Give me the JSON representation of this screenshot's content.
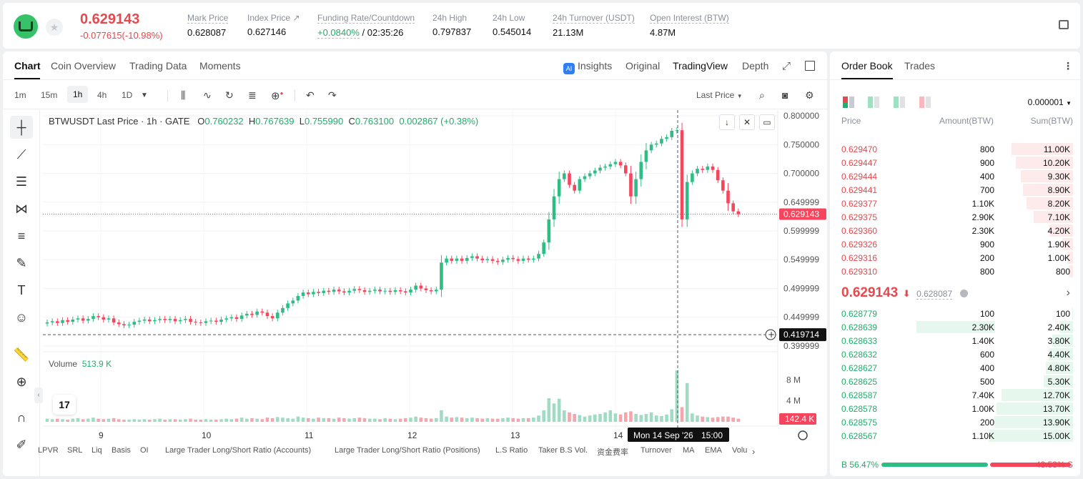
{
  "header": {
    "last_price": "0.629143",
    "change": "-0.077615(-10.98%)",
    "stats": [
      {
        "label": "Mark Price",
        "value": "0.628087"
      },
      {
        "label": "Index Price ↗",
        "value": "0.627146"
      },
      {
        "label": "Funding Rate/Countdown",
        "value_green": "+0.0840%",
        "value_rest": "/ 02:35:26"
      },
      {
        "label": "24h High",
        "value": "0.797837"
      },
      {
        "label": "24h Low",
        "value": "0.545014"
      },
      {
        "label": "24h Turnover (USDT)",
        "value": "21.13M"
      },
      {
        "label": "Open Interest (BTW)",
        "value": "4.87M"
      }
    ]
  },
  "chart_tabs": [
    "Chart",
    "Coin Overview",
    "Trading Data",
    "Moments"
  ],
  "view_tabs": {
    "ai": "AI",
    "insights": "Insights",
    "original": "Original",
    "tradingview": "TradingView",
    "depth": "Depth"
  },
  "timeframes": [
    "1m",
    "15m",
    "1h",
    "4h",
    "1D"
  ],
  "toolbar": {
    "price_type": "Last Price"
  },
  "legend": {
    "symbol": "BTWUSDT Last Price · 1h · GATE",
    "o_label": "O",
    "o": "0.760232",
    "h_label": "H",
    "h": "0.767639",
    "l_label": "L",
    "l": "0.755990",
    "c_label": "C",
    "c": "0.763100",
    "chg": "0.002867 (+0.38%)"
  },
  "volume_legend": {
    "label": "Volume",
    "value": "513.9 K"
  },
  "crosshair": {
    "price_label": "0.419714",
    "time_label": "Mon 14 Sep '26",
    "time_hour": "15:00"
  },
  "chart_data": {
    "type": "candlestick",
    "title": "BTWUSDT Last Price · 1h · GATE",
    "x_tick_labels": [
      "9",
      "10",
      "11",
      "12",
      "13",
      "14"
    ],
    "price_tick_labels": [
      "0.800000",
      "0.750000",
      "0.700000",
      "0.649999",
      "0.599999",
      "0.549999",
      "0.499999",
      "0.449999",
      "0.399999"
    ],
    "ylim": [
      0.39,
      0.81
    ],
    "current_price_label": "0.629143",
    "volume_tick_labels": [
      "8 M",
      "4 M"
    ],
    "volume_label": "142.4 K",
    "volume_ylim": [
      0,
      12
    ],
    "closes": [
      0.441,
      0.443,
      0.44,
      0.445,
      0.442,
      0.446,
      0.448,
      0.444,
      0.447,
      0.452,
      0.45,
      0.446,
      0.448,
      0.441,
      0.438,
      0.436,
      0.437,
      0.442,
      0.444,
      0.446,
      0.443,
      0.445,
      0.447,
      0.445,
      0.447,
      0.443,
      0.445,
      0.447,
      0.442,
      0.441,
      0.44,
      0.443,
      0.444,
      0.442,
      0.446,
      0.448,
      0.45,
      0.447,
      0.453,
      0.456,
      0.454,
      0.46,
      0.458,
      0.452,
      0.448,
      0.458,
      0.466,
      0.474,
      0.479,
      0.487,
      0.493,
      0.49,
      0.494,
      0.492,
      0.496,
      0.494,
      0.498,
      0.495,
      0.493,
      0.496,
      0.499,
      0.497,
      0.494,
      0.496,
      0.498,
      0.495,
      0.496,
      0.494,
      0.497,
      0.495,
      0.493,
      0.498,
      0.505,
      0.5,
      0.497,
      0.495,
      0.498,
      0.545,
      0.552,
      0.548,
      0.552,
      0.548,
      0.553,
      0.556,
      0.552,
      0.549,
      0.551,
      0.548,
      0.546,
      0.55,
      0.553,
      0.551,
      0.548,
      0.552,
      0.55,
      0.552,
      0.56,
      0.58,
      0.62,
      0.66,
      0.69,
      0.7,
      0.68,
      0.67,
      0.69,
      0.695,
      0.7,
      0.705,
      0.71,
      0.712,
      0.716,
      0.72,
      0.714,
      0.7,
      0.66,
      0.69,
      0.72,
      0.74,
      0.75,
      0.752,
      0.76,
      0.763,
      0.774,
      0.775,
      0.62,
      0.685,
      0.7,
      0.708,
      0.706,
      0.712,
      0.706,
      0.688,
      0.67,
      0.648,
      0.634,
      0.629
    ],
    "volumes": [
      0.6,
      0.5,
      0.6,
      0.5,
      0.4,
      0.6,
      0.7,
      0.5,
      0.6,
      0.8,
      0.6,
      0.5,
      0.6,
      0.7,
      0.5,
      0.4,
      0.4,
      0.5,
      0.4,
      0.5,
      0.4,
      0.5,
      0.6,
      0.4,
      0.5,
      0.5,
      0.4,
      0.5,
      0.6,
      0.4,
      0.4,
      0.5,
      0.4,
      0.4,
      0.5,
      0.6,
      0.5,
      0.6,
      0.8,
      0.6,
      0.7,
      0.6,
      0.5,
      0.8,
      0.7,
      0.9,
      0.8,
      0.7,
      0.6,
      1.0,
      0.8,
      0.7,
      0.6,
      0.8,
      0.7,
      0.7,
      0.6,
      0.8,
      0.7,
      0.6,
      0.7,
      0.8,
      0.7,
      0.6,
      0.6,
      0.5,
      0.7,
      0.6,
      0.5,
      0.6,
      0.7,
      0.8,
      1.0,
      0.8,
      0.7,
      0.6,
      0.7,
      2.2,
      1.0,
      0.8,
      0.9,
      0.8,
      0.7,
      0.8,
      0.7,
      0.6,
      0.7,
      0.6,
      0.6,
      0.7,
      0.8,
      0.7,
      0.6,
      0.7,
      0.7,
      0.8,
      1.2,
      2.2,
      4.5,
      3.5,
      4.4,
      2.2,
      1.8,
      1.5,
      1.3,
      1.0,
      1.2,
      1.4,
      1.5,
      1.8,
      2.2,
      1.6,
      1.4,
      1.8,
      2.0,
      1.5,
      1.3,
      1.5,
      1.8,
      1.2,
      1.1,
      1.4,
      2.4,
      9.8,
      2.8,
      7.4,
      1.6,
      1.2,
      1.0,
      0.9,
      0.8,
      0.9,
      1.0,
      1.0,
      0.8,
      0.6
    ]
  },
  "indicators": [
    "LPVR",
    "SRL",
    "Liq",
    "Basis",
    "OI",
    "Large Trader Long/Short Ratio (Accounts)",
    "Large Trader Long/Short Ratio (Positions)",
    "L.S Ratio",
    "Taker B.S Vol.",
    "资金费率",
    "Turnover",
    "MA",
    "EMA",
    "Volu"
  ],
  "order_book": {
    "tabs": [
      "Order Book",
      "Trades"
    ],
    "precision": "0.000001",
    "columns": {
      "price": "Price",
      "amount": "Amount(BTW)",
      "sum": "Sum(BTW)"
    },
    "asks": [
      {
        "price": "0.629470",
        "amount": "800",
        "sum": "11.00K",
        "depth": 0.73
      },
      {
        "price": "0.629447",
        "amount": "900",
        "sum": "10.20K",
        "depth": 0.68
      },
      {
        "price": "0.629444",
        "amount": "400",
        "sum": "9.30K",
        "depth": 0.62
      },
      {
        "price": "0.629441",
        "amount": "700",
        "sum": "8.90K",
        "depth": 0.59
      },
      {
        "price": "0.629377",
        "amount": "1.10K",
        "sum": "8.20K",
        "depth": 0.55
      },
      {
        "price": "0.629375",
        "amount": "2.90K",
        "sum": "7.10K",
        "depth": 0.47
      },
      {
        "price": "0.629360",
        "amount": "2.30K",
        "sum": "4.20K",
        "depth": 0.28
      },
      {
        "price": "0.629326",
        "amount": "900",
        "sum": "1.90K",
        "depth": 0.13
      },
      {
        "price": "0.629316",
        "amount": "200",
        "sum": "1.00K",
        "depth": 0.07
      },
      {
        "price": "0.629310",
        "amount": "800",
        "sum": "800",
        "depth": 0.05
      }
    ],
    "mid_price": "0.629143",
    "mid_arrow": "⬇",
    "mid_mark": "0.628087",
    "bids": [
      {
        "price": "0.628779",
        "amount": "100",
        "sum": "100",
        "depth": 0.01
      },
      {
        "price": "0.628639",
        "amount": "2.30K",
        "sum": "2.40K",
        "depth": 0.16
      },
      {
        "price": "0.628633",
        "amount": "1.40K",
        "sum": "3.80K",
        "depth": 0.25
      },
      {
        "price": "0.628632",
        "amount": "600",
        "sum": "4.40K",
        "depth": 0.29
      },
      {
        "price": "0.628627",
        "amount": "400",
        "sum": "4.80K",
        "depth": 0.32
      },
      {
        "price": "0.628625",
        "amount": "500",
        "sum": "5.30K",
        "depth": 0.35
      },
      {
        "price": "0.628587",
        "amount": "7.40K",
        "sum": "12.70K",
        "depth": 0.85
      },
      {
        "price": "0.628578",
        "amount": "1.00K",
        "sum": "13.70K",
        "depth": 0.91
      },
      {
        "price": "0.628575",
        "amount": "200",
        "sum": "13.90K",
        "depth": 0.93
      },
      {
        "price": "0.628567",
        "amount": "1.10K",
        "sum": "15.00K",
        "depth": 1.0
      }
    ],
    "highlight_bid_amount_row": 1,
    "ratio": {
      "buy_label": "B",
      "buy": "56.47%",
      "sell": "43.53%",
      "sell_label": "S",
      "buy_fraction": 0.5647
    }
  },
  "colors": {
    "up": "#2ebd85",
    "down": "#f6465d",
    "up_text": "#1fae6b",
    "down_text": "#e5484d"
  }
}
